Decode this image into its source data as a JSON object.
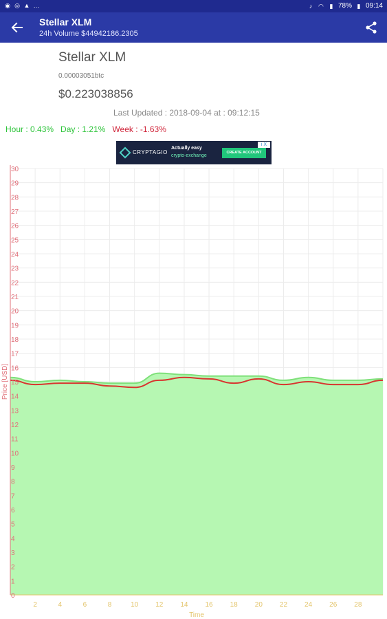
{
  "status_bar": {
    "battery": "78%",
    "time": "09:14",
    "left_icons": [
      "messenger-icon",
      "whatsapp-icon",
      "warning-icon",
      "more-dots-icon"
    ]
  },
  "app_bar": {
    "title": "Stellar XLM",
    "subtitle": "24h Volume $44942186.2305"
  },
  "coin": {
    "name": "Stellar XLM",
    "btc_price": "0.00003051btc",
    "usd_price": "$0.223038856",
    "last_updated": "Last Updated : 2018-09-04 at : 09:12:15"
  },
  "changes": {
    "hour": "Hour : 0.43%",
    "day": "Day : 1.21%",
    "week": "Week : -1.63%"
  },
  "ad": {
    "logo": "CRYPTAGIO",
    "line1": "Actually easy",
    "line2": "crypto-exchange",
    "cta": "CREATE ACCOUNT",
    "choice": "i X"
  },
  "colors": {
    "status_bar": "#1f2a8f",
    "app_bar": "#2b3aa6",
    "axis_y": "#e0707a",
    "axis_x": "#e3c46a",
    "fill": "#b6f7b2",
    "upper_line": "#7fe07a",
    "price_line": "#d8352f"
  },
  "chart_data": {
    "type": "area",
    "xlabel": "Time",
    "ylabel": "Price [USD]",
    "x_ticks": [
      2,
      4,
      6,
      8,
      10,
      12,
      14,
      16,
      18,
      20,
      22,
      24,
      26,
      28
    ],
    "y_ticks": [
      0,
      1,
      2,
      3,
      4,
      5,
      6,
      7,
      8,
      9,
      10,
      11,
      12,
      13,
      14,
      15,
      16,
      17,
      18,
      19,
      20,
      21,
      22,
      23,
      24,
      25,
      26,
      27,
      28,
      29,
      30
    ],
    "xlim": [
      0,
      30
    ],
    "ylim": [
      0,
      30
    ],
    "grid": true,
    "x": [
      0,
      2,
      4,
      6,
      8,
      10,
      12,
      14,
      16,
      18,
      20,
      22,
      24,
      26,
      28,
      30
    ],
    "series": [
      {
        "values": [
          15.3,
          15.0,
          15.1,
          15.0,
          14.9,
          14.9,
          15.6,
          15.5,
          15.4,
          15.4,
          15.4,
          15.1,
          15.3,
          15.1,
          15.1,
          15.2
        ]
      },
      {
        "values": [
          15.1,
          14.8,
          14.9,
          14.9,
          14.7,
          14.6,
          15.1,
          15.3,
          15.2,
          14.9,
          15.2,
          14.8,
          15.0,
          14.8,
          14.8,
          15.1
        ]
      }
    ]
  }
}
